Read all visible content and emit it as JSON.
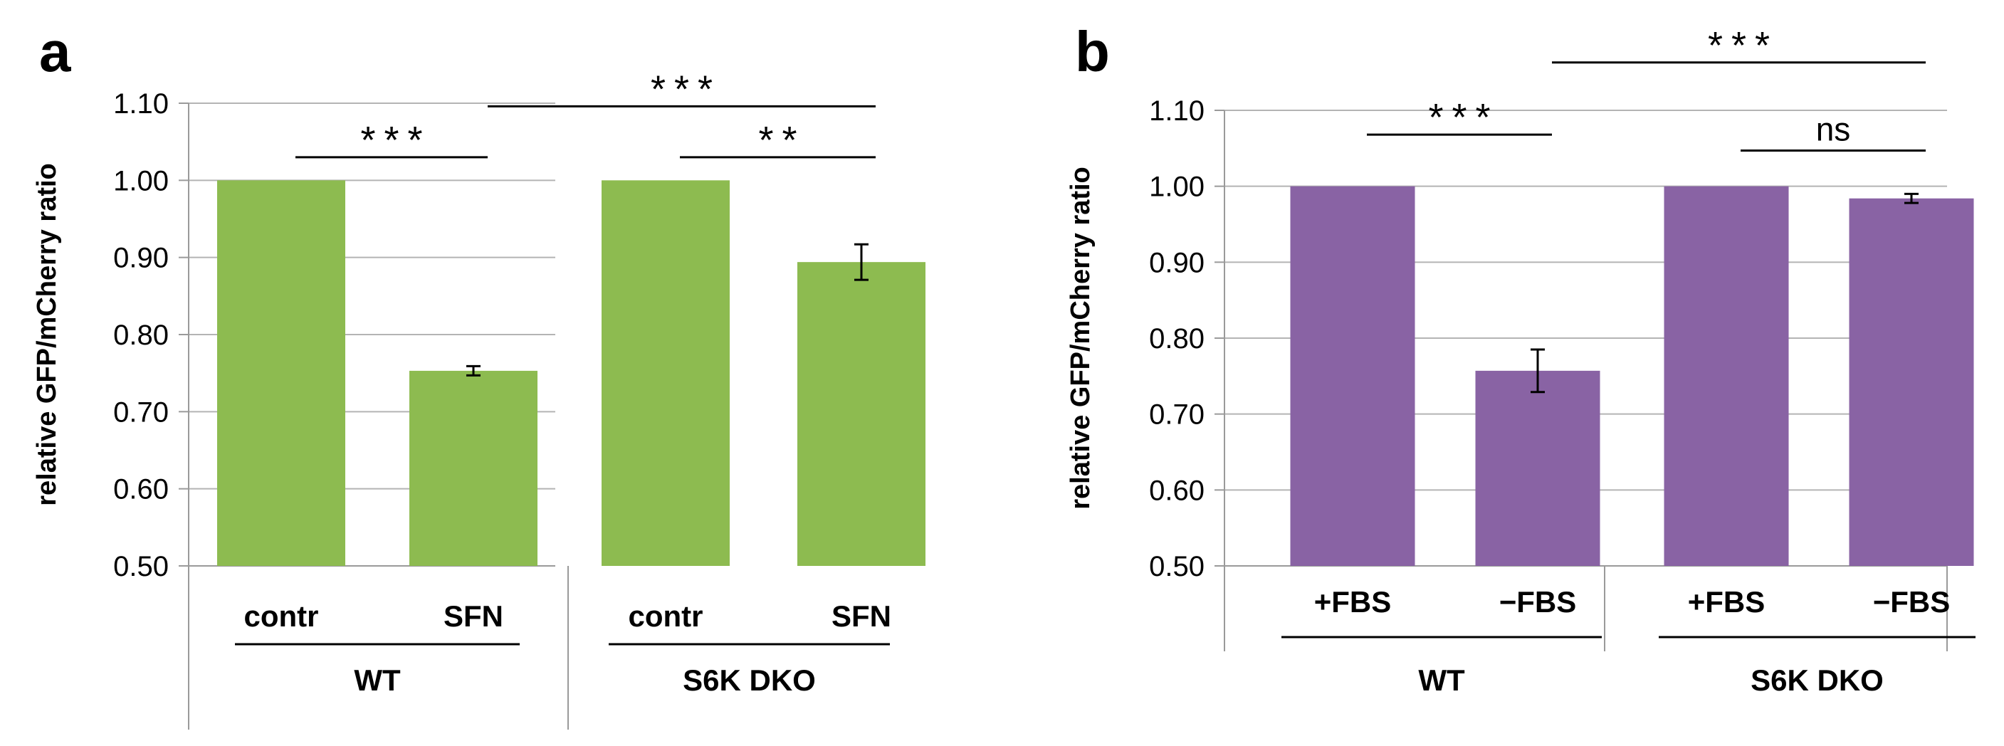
{
  "chart_data": [
    {
      "type": "bar",
      "panel": "a",
      "ylabel": "relative GFP/mCherry ratio",
      "ylim": [
        0.5,
        1.1
      ],
      "yticks": [
        "0.50",
        "0.60",
        "0.70",
        "0.80",
        "0.90",
        "1.00",
        "1.10"
      ],
      "grid": true,
      "color": "#8DBB50",
      "categories": [
        "contr",
        "SFN",
        "contr",
        "SFN"
      ],
      "groups": [
        {
          "label": "WT",
          "categories": [
            "contr",
            "SFN"
          ]
        },
        {
          "label": "S6K DKO",
          "categories": [
            "contr",
            "SFN"
          ]
        }
      ],
      "values": [
        1.0,
        0.753,
        1.0,
        0.894
      ],
      "errors": [
        0,
        0.006,
        0,
        0.023
      ],
      "significance": [
        {
          "from": 0,
          "to": 1,
          "label": "***",
          "y": 1.03
        },
        {
          "from": 2,
          "to": 3,
          "label": "**",
          "y": 1.03
        },
        {
          "from": 1,
          "to": 3,
          "label": "***",
          "y": 1.096
        }
      ]
    },
    {
      "type": "bar",
      "panel": "b",
      "ylabel": "relative GFP/mCherry ratio",
      "ylim": [
        0.5,
        1.1
      ],
      "yticks": [
        "0.50",
        "0.60",
        "0.70",
        "0.80",
        "0.90",
        "1.00",
        "1.10"
      ],
      "grid": true,
      "color": "#8963A4",
      "categories": [
        "+FBS",
        "−FBS",
        "+FBS",
        "−FBS"
      ],
      "groups": [
        {
          "label": "WT",
          "categories": [
            "+FBS",
            "−FBS"
          ]
        },
        {
          "label": "S6K DKO",
          "categories": [
            "+FBS",
            "−FBS"
          ]
        }
      ],
      "values": [
        1.0,
        0.757,
        1.0,
        0.984
      ],
      "errors": [
        0,
        0.028,
        0,
        0.006
      ],
      "significance": [
        {
          "from": 0,
          "to": 1,
          "label": "***",
          "y": 1.068
        },
        {
          "from": 2,
          "to": 3,
          "label": "ns",
          "y": 1.047
        },
        {
          "from": 1,
          "to": 3,
          "label": "***",
          "y": 1.163
        }
      ]
    }
  ]
}
